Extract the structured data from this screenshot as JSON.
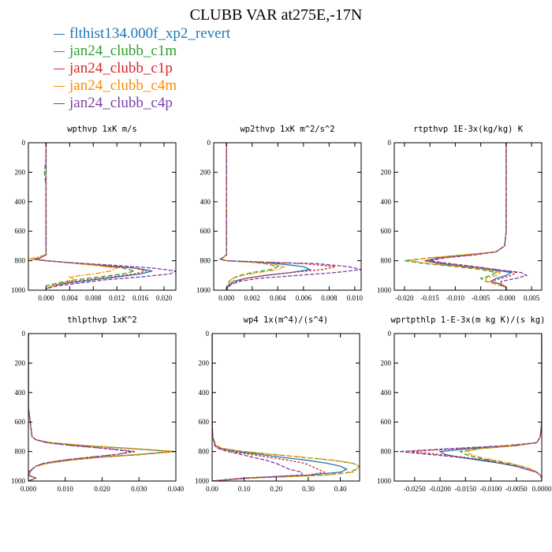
{
  "title": "CLUBB VAR at275E,-17N",
  "legend": [
    {
      "label": "flthist134.000f_xp2_revert",
      "color": "#1f77b4"
    },
    {
      "label": "jan24_clubb_c1m",
      "color": "#2ca02c"
    },
    {
      "label": "jan24_clubb_c1p",
      "color": "#d62728"
    },
    {
      "label": "jan24_clubb_c4m",
      "color": "#ff8c00"
    },
    {
      "label": "jan24_clubb_c4p",
      "color": "#7b3fa0"
    }
  ],
  "chart_data": [
    {
      "type": "line",
      "title": "wpthvp   1xK m/s",
      "xlim": [
        -0.003,
        0.022
      ],
      "ylim": [
        1000,
        0
      ],
      "xticks": [
        0.0,
        0.004,
        0.008,
        0.012,
        0.016,
        0.02
      ],
      "xtick_labels": [
        "0.000",
        "0.004",
        "0.008",
        "0.012",
        "0.016",
        "0.020"
      ],
      "yticks": [
        0,
        200,
        400,
        600,
        800,
        1000
      ],
      "y": [
        0,
        100,
        200,
        230,
        300,
        400,
        500,
        600,
        700,
        760,
        780,
        790,
        800,
        810,
        830,
        850,
        870,
        890,
        910,
        930,
        950,
        970,
        990,
        1000
      ],
      "series": [
        {
          "name": "flthist134.000f_xp2_revert",
          "x": [
            0.0,
            0.0,
            0.0,
            0.0,
            0.0,
            0.0,
            0.0,
            0.0,
            0.0,
            0.0,
            -0.001,
            -0.002,
            0.0,
            0.003,
            0.009,
            0.015,
            0.018,
            0.016,
            0.012,
            0.008,
            0.004,
            0.001,
            0.0,
            0.0
          ]
        },
        {
          "name": "jan24_clubb_c1m",
          "x": [
            0.0,
            0.0,
            -0.0003,
            -0.0002,
            0.0,
            0.0,
            0.0,
            0.0,
            0.0,
            0.0,
            -0.001,
            -0.002,
            0.0,
            0.003,
            0.008,
            0.013,
            0.015,
            0.013,
            0.009,
            0.005,
            0.002,
            0.0,
            0.0,
            0.0
          ]
        },
        {
          "name": "jan24_clubb_c1p",
          "x": [
            0.0,
            0.0,
            0.0,
            0.0,
            0.0,
            0.0,
            0.0,
            0.0,
            0.0,
            0.0,
            -0.001,
            -0.002,
            0.0,
            0.003,
            0.009,
            0.015,
            0.017,
            0.015,
            0.011,
            0.007,
            0.003,
            0.001,
            0.0,
            0.0
          ]
        },
        {
          "name": "jan24_clubb_c4m",
          "x": [
            0.0,
            0.0,
            0.0,
            0.0,
            0.0,
            0.0,
            0.0,
            0.0,
            0.0,
            0.0,
            -0.002,
            -0.003,
            0.0,
            0.003,
            0.008,
            0.012,
            0.011,
            0.008,
            0.004,
            0.005,
            0.003,
            0.001,
            0.0,
            0.0
          ]
        },
        {
          "name": "jan24_clubb_c4p",
          "x": [
            0.0,
            0.0,
            0.0,
            0.0,
            0.0,
            0.0,
            0.0,
            0.0,
            0.0,
            0.0,
            -0.001,
            -0.002,
            0.0,
            0.003,
            0.011,
            0.018,
            0.022,
            0.021,
            0.016,
            0.01,
            0.006,
            0.002,
            0.0,
            0.0
          ]
        }
      ]
    },
    {
      "type": "line",
      "title": "wp2thvp   1xK m^2/s^2",
      "xlim": [
        -0.001,
        0.0105
      ],
      "ylim": [
        1000,
        0
      ],
      "xticks": [
        0.0,
        0.002,
        0.004,
        0.006,
        0.008,
        0.01
      ],
      "xtick_labels": [
        "0.000",
        "0.002",
        "0.004",
        "0.006",
        "0.008",
        "0.010"
      ],
      "yticks": [
        0,
        200,
        400,
        600,
        800,
        1000
      ],
      "y": [
        0,
        200,
        400,
        600,
        700,
        760,
        780,
        790,
        800,
        810,
        820,
        840,
        860,
        880,
        900,
        920,
        940,
        960,
        980,
        1000
      ],
      "series": [
        {
          "name": "flthist134.000f_xp2_revert",
          "x": [
            0.0,
            0.0,
            0.0,
            0.0,
            0.0,
            0.0,
            -0.0003,
            -0.0005,
            0.0,
            0.002,
            0.004,
            0.006,
            0.0065,
            0.005,
            0.003,
            0.0015,
            0.0005,
            0.0002,
            0.0001,
            0.0
          ]
        },
        {
          "name": "jan24_clubb_c1m",
          "x": [
            0.0,
            0.0,
            0.0,
            0.0,
            0.0,
            0.0,
            -0.0003,
            -0.0005,
            0.0,
            0.002,
            0.003,
            0.004,
            0.0035,
            0.002,
            0.001,
            0.0005,
            0.0002,
            0.0001,
            0.0,
            0.0
          ]
        },
        {
          "name": "jan24_clubb_c1p",
          "x": [
            0.0,
            0.0,
            0.0,
            0.0,
            0.0,
            0.0,
            -0.0003,
            -0.0005,
            0.0,
            0.003,
            0.006,
            0.0085,
            0.0075,
            0.005,
            0.003,
            0.0015,
            0.0008,
            0.0003,
            0.0001,
            0.0
          ]
        },
        {
          "name": "jan24_clubb_c4m",
          "x": [
            0.0,
            0.0,
            0.0,
            0.0,
            0.0,
            0.0,
            -0.0003,
            -0.0005,
            0.0,
            0.002,
            0.0035,
            0.0045,
            0.004,
            0.0025,
            0.0012,
            0.0005,
            0.0002,
            0.0001,
            0.0,
            0.0
          ]
        },
        {
          "name": "jan24_clubb_c4p",
          "x": [
            0.0,
            0.0,
            0.0,
            0.0,
            0.0,
            0.0,
            -0.0003,
            -0.0005,
            0.0,
            0.003,
            0.007,
            0.0095,
            0.0105,
            0.0085,
            0.0055,
            0.0025,
            0.001,
            0.0004,
            0.0001,
            0.0
          ]
        }
      ]
    },
    {
      "type": "line",
      "title": "rtpthvp   1E-3x(kg/kg) K",
      "xlim": [
        -0.022,
        0.007
      ],
      "ylim": [
        1000,
        0
      ],
      "xticks": [
        -0.02,
        -0.015,
        -0.01,
        -0.005,
        0.0,
        0.005
      ],
      "xtick_labels": [
        "-0.020",
        "-0.015",
        "-0.010",
        "-0.005",
        "-0.000",
        "0.005"
      ],
      "yticks": [
        0,
        200,
        400,
        600,
        800,
        1000
      ],
      "y": [
        0,
        200,
        400,
        600,
        700,
        740,
        760,
        780,
        800,
        820,
        840,
        860,
        880,
        900,
        920,
        940,
        960,
        980,
        1000
      ],
      "series": [
        {
          "name": "flthist134.000f_xp2_revert",
          "x": [
            0.0,
            0.0,
            0.0,
            0.0,
            -0.0003,
            -0.002,
            -0.007,
            -0.013,
            -0.016,
            -0.013,
            -0.008,
            -0.003,
            0.001,
            0.0,
            -0.002,
            -0.003,
            -0.001,
            0.0,
            0.0
          ]
        },
        {
          "name": "jan24_clubb_c1m",
          "x": [
            0.0,
            0.0,
            0.0,
            0.0,
            -0.0003,
            -0.002,
            -0.008,
            -0.015,
            -0.02,
            -0.016,
            -0.01,
            -0.005,
            -0.002,
            -0.003,
            -0.005,
            -0.004,
            -0.002,
            0.0,
            0.0
          ]
        },
        {
          "name": "jan24_clubb_c1p",
          "x": [
            0.0,
            0.0,
            0.0,
            0.0,
            -0.0003,
            -0.002,
            -0.007,
            -0.013,
            -0.016,
            -0.012,
            -0.007,
            -0.002,
            0.002,
            0.001,
            -0.001,
            -0.003,
            -0.001,
            0.0,
            0.0
          ]
        },
        {
          "name": "jan24_clubb_c4m",
          "x": [
            0.0,
            0.0,
            0.0,
            0.0,
            -0.0003,
            -0.002,
            -0.008,
            -0.015,
            -0.019,
            -0.015,
            -0.009,
            -0.004,
            -0.001,
            -0.002,
            -0.004,
            -0.004,
            -0.002,
            0.0,
            0.0
          ]
        },
        {
          "name": "jan24_clubb_c4p",
          "x": [
            0.0,
            0.0,
            0.0,
            0.0,
            -0.0003,
            -0.002,
            -0.006,
            -0.012,
            -0.015,
            -0.011,
            -0.006,
            -0.002,
            0.003,
            0.004,
            0.002,
            -0.001,
            -0.001,
            0.0,
            0.0
          ]
        }
      ]
    },
    {
      "type": "line",
      "title": "thlpthvp   1xK^2",
      "xlim": [
        0.0,
        0.04
      ],
      "ylim": [
        1000,
        0
      ],
      "xticks": [
        0.0,
        0.01,
        0.02,
        0.03,
        0.04
      ],
      "xtick_labels": [
        "0.000",
        "0.010",
        "0.020",
        "0.030",
        "0.040"
      ],
      "yticks": [
        0,
        200,
        400,
        600,
        800,
        1000
      ],
      "y": [
        0,
        100,
        200,
        300,
        400,
        500,
        600,
        700,
        720,
        740,
        760,
        780,
        800,
        820,
        840,
        860,
        880,
        900,
        920,
        940,
        960,
        980,
        1000
      ],
      "series": [
        {
          "name": "flthist134.000f_xp2_revert",
          "x": [
            0.0,
            0.0,
            0.0,
            0.0,
            0.0,
            0.0,
            0.0005,
            0.001,
            0.002,
            0.006,
            0.015,
            0.028,
            0.039,
            0.03,
            0.018,
            0.01,
            0.005,
            0.002,
            0.001,
            0.0005,
            0.0,
            0.002,
            0.0
          ]
        },
        {
          "name": "jan24_clubb_c1m",
          "x": [
            0.0,
            0.0,
            0.0,
            0.0,
            0.0,
            0.0,
            0.0005,
            0.001,
            0.002,
            0.006,
            0.015,
            0.028,
            0.04,
            0.031,
            0.019,
            0.011,
            0.005,
            0.002,
            0.001,
            0.0005,
            0.0,
            0.002,
            0.0
          ]
        },
        {
          "name": "jan24_clubb_c1p",
          "x": [
            0.0,
            0.0,
            0.0,
            0.0,
            0.0,
            0.0,
            0.0005,
            0.001,
            0.002,
            0.005,
            0.012,
            0.022,
            0.029,
            0.024,
            0.016,
            0.009,
            0.004,
            0.002,
            0.001,
            0.0,
            0.0,
            0.002,
            0.0
          ]
        },
        {
          "name": "jan24_clubb_c4m",
          "x": [
            0.0,
            0.0,
            0.0,
            0.0,
            0.0,
            0.0,
            0.0005,
            0.001,
            0.002,
            0.006,
            0.016,
            0.029,
            0.04,
            0.031,
            0.019,
            0.011,
            0.005,
            0.002,
            0.001,
            0.0005,
            0.0,
            0.002,
            0.0
          ]
        },
        {
          "name": "jan24_clubb_c4p",
          "x": [
            0.0,
            0.0,
            0.0,
            0.0,
            0.0,
            0.0,
            0.0005,
            0.001,
            0.002,
            0.005,
            0.012,
            0.021,
            0.028,
            0.024,
            0.016,
            0.009,
            0.004,
            0.002,
            0.001,
            0.0,
            0.0,
            0.002,
            0.0
          ]
        }
      ]
    },
    {
      "type": "line",
      "title": "wp4   1x(m^4)/(s^4)",
      "xlim": [
        0.0,
        0.46
      ],
      "ylim": [
        1000,
        0
      ],
      "xticks": [
        0.0,
        0.1,
        0.2,
        0.3,
        0.4
      ],
      "xtick_labels": [
        "0.00",
        "0.10",
        "0.20",
        "0.30",
        "0.40"
      ],
      "yticks": [
        0,
        200,
        400,
        600,
        800,
        1000
      ],
      "y": [
        0,
        200,
        400,
        600,
        700,
        760,
        780,
        800,
        820,
        840,
        860,
        880,
        900,
        920,
        940,
        960,
        980,
        1000
      ],
      "series": [
        {
          "name": "flthist134.000f_xp2_revert",
          "x": [
            0.0,
            0.0,
            0.0,
            0.0,
            0.002,
            0.01,
            0.03,
            0.08,
            0.15,
            0.22,
            0.3,
            0.36,
            0.4,
            0.42,
            0.4,
            0.3,
            0.1,
            0.0
          ]
        },
        {
          "name": "jan24_clubb_c1m",
          "x": [
            0.0,
            0.0,
            0.0,
            0.0,
            0.002,
            0.012,
            0.035,
            0.1,
            0.19,
            0.29,
            0.38,
            0.44,
            0.46,
            0.45,
            0.43,
            0.35,
            0.12,
            0.0
          ]
        },
        {
          "name": "jan24_clubb_c1p",
          "x": [
            0.0,
            0.0,
            0.0,
            0.0,
            0.002,
            0.008,
            0.025,
            0.06,
            0.12,
            0.18,
            0.24,
            0.29,
            0.31,
            0.33,
            0.35,
            0.3,
            0.1,
            0.0
          ]
        },
        {
          "name": "jan24_clubb_c4m",
          "x": [
            0.0,
            0.0,
            0.0,
            0.0,
            0.002,
            0.012,
            0.035,
            0.1,
            0.19,
            0.29,
            0.38,
            0.44,
            0.46,
            0.45,
            0.44,
            0.36,
            0.12,
            0.0
          ]
        },
        {
          "name": "jan24_clubb_c4p",
          "x": [
            0.0,
            0.0,
            0.0,
            0.0,
            0.002,
            0.008,
            0.02,
            0.05,
            0.09,
            0.13,
            0.17,
            0.2,
            0.22,
            0.24,
            0.28,
            0.28,
            0.1,
            0.0
          ]
        }
      ]
    },
    {
      "type": "line",
      "title": "wprtpthlp   1-E-3x(m kg K)/(s kg)",
      "xlim": [
        -0.029,
        0.0
      ],
      "ylim": [
        1000,
        0
      ],
      "xticks": [
        -0.025,
        -0.02,
        -0.015,
        -0.01,
        -0.005,
        0.0
      ],
      "xtick_labels": [
        "-0.0250",
        "-0.0200",
        "-0.0150",
        "-0.0100",
        "-0.0050",
        "0.0000"
      ],
      "yticks": [
        0,
        200,
        400,
        600,
        800,
        1000
      ],
      "y": [
        0,
        200,
        400,
        600,
        700,
        740,
        760,
        780,
        800,
        820,
        840,
        860,
        880,
        900,
        920,
        940,
        960,
        980,
        1000
      ],
      "series": [
        {
          "name": "flthist134.000f_xp2_revert",
          "x": [
            0.0,
            0.0,
            0.0,
            0.0,
            -0.0003,
            -0.001,
            -0.005,
            -0.014,
            -0.02,
            -0.019,
            -0.016,
            -0.012,
            -0.008,
            -0.005,
            -0.003,
            -0.001,
            -0.0003,
            0.0,
            0.0
          ]
        },
        {
          "name": "jan24_clubb_c1m",
          "x": [
            0.0,
            0.0,
            0.0,
            0.0,
            -0.0003,
            -0.001,
            -0.005,
            -0.012,
            -0.016,
            -0.015,
            -0.013,
            -0.01,
            -0.007,
            -0.004,
            -0.002,
            -0.001,
            -0.0003,
            0.0,
            0.0
          ]
        },
        {
          "name": "jan24_clubb_c1p",
          "x": [
            0.0,
            0.0,
            0.0,
            0.0,
            -0.0003,
            -0.001,
            -0.006,
            -0.016,
            -0.026,
            -0.02,
            -0.015,
            -0.011,
            -0.008,
            -0.005,
            -0.003,
            -0.001,
            -0.0003,
            0.0,
            0.0
          ]
        },
        {
          "name": "jan24_clubb_c4m",
          "x": [
            0.0,
            0.0,
            0.0,
            0.0,
            -0.0003,
            -0.001,
            -0.005,
            -0.012,
            -0.015,
            -0.014,
            -0.012,
            -0.009,
            -0.006,
            -0.004,
            -0.002,
            -0.001,
            -0.0003,
            0.0,
            0.0
          ]
        },
        {
          "name": "jan24_clubb_c4p",
          "x": [
            0.0,
            0.0,
            0.0,
            0.0,
            -0.0003,
            -0.001,
            -0.007,
            -0.018,
            -0.028,
            -0.022,
            -0.016,
            -0.011,
            -0.008,
            -0.005,
            -0.003,
            -0.001,
            -0.0003,
            0.0,
            0.0
          ]
        }
      ]
    }
  ]
}
